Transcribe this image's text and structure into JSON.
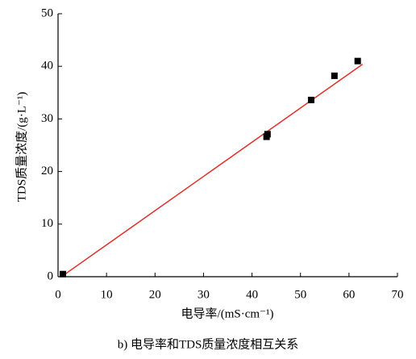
{
  "chart_data": {
    "type": "scatter",
    "caption": "b) 电导率和TDS质量浓度相互关系",
    "xlabel": "电导率/(mS·cm⁻¹)",
    "ylabel": "TDS质量浓度/(g·L⁻¹)",
    "x": [
      1,
      43,
      43.2,
      52.2,
      57,
      61.8
    ],
    "values": [
      0.5,
      26.6,
      27.1,
      33.6,
      38.2,
      41
    ],
    "color": "#000000",
    "fit": {
      "x": [
        1,
        62.8
      ],
      "values": [
        0.2,
        40.4
      ],
      "color": "#e0302a"
    },
    "xlim": [
      0,
      70
    ],
    "xticks": [
      0,
      10,
      20,
      30,
      40,
      50,
      60,
      70
    ],
    "ylim": [
      0,
      50
    ],
    "yticks": [
      0,
      10,
      20,
      30,
      40,
      50
    ]
  }
}
